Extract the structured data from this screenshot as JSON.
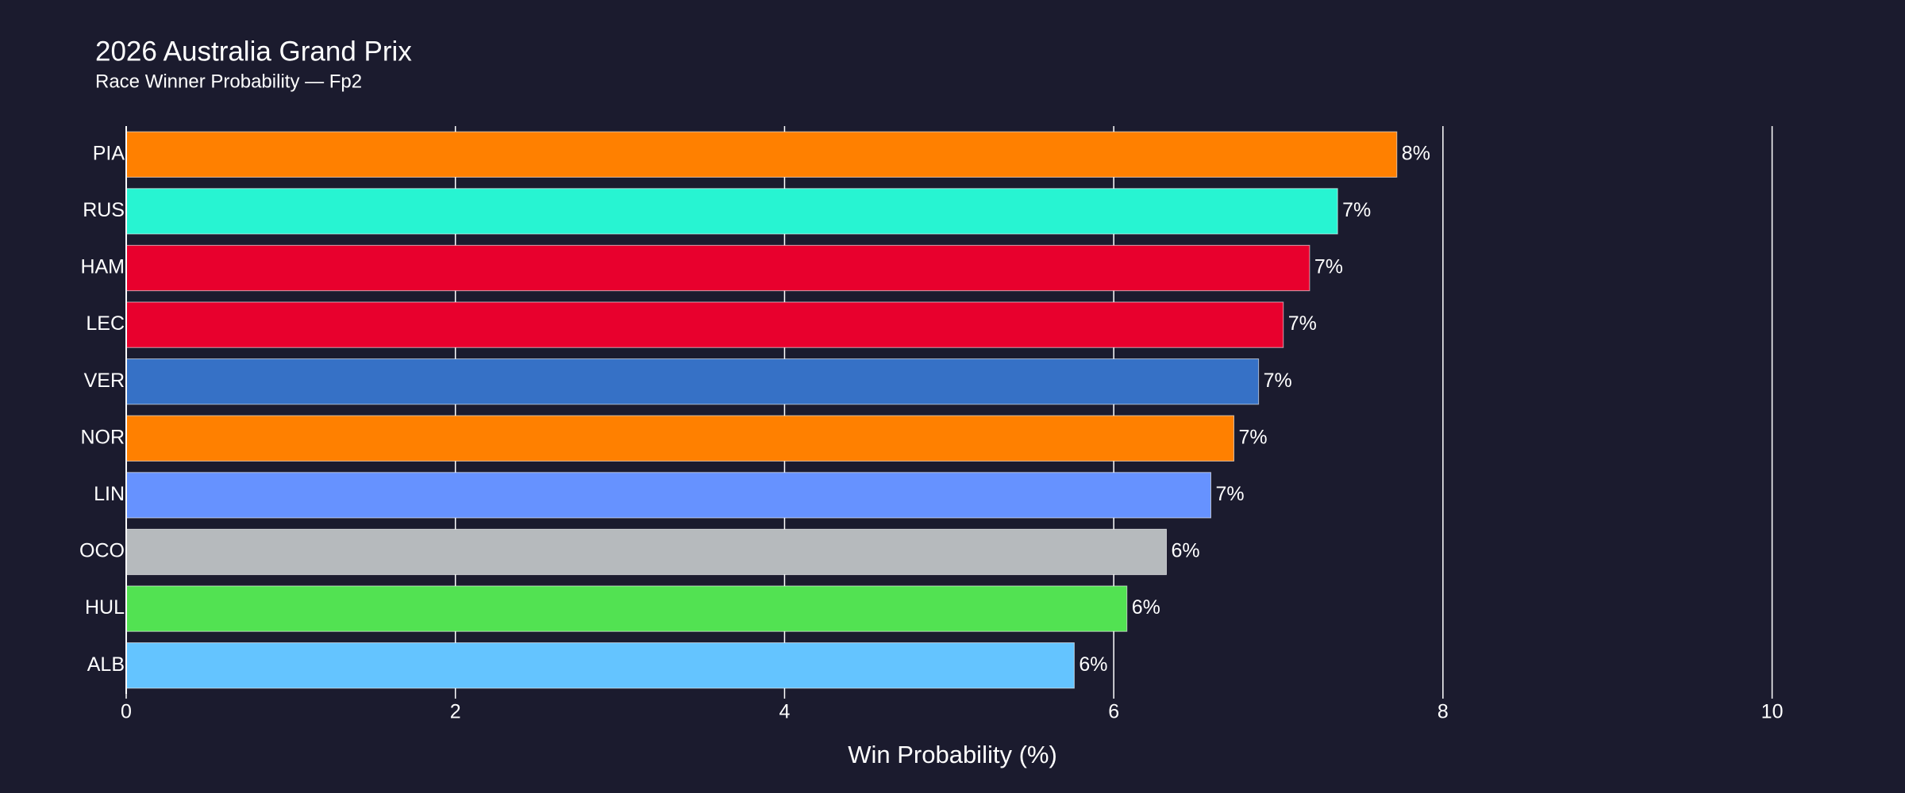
{
  "chart_data": {
    "type": "barh",
    "title": "2026 Australia Grand Prix",
    "subtitle": "Race Winner Probability — Fp2",
    "x_label": "Win Probability (%)",
    "categories": [
      "PIA",
      "RUS",
      "HAM",
      "LEC",
      "VER",
      "NOR",
      "LIN",
      "OCO",
      "HUL",
      "ALB"
    ],
    "values": [
      7.72,
      7.36,
      7.19,
      7.03,
      6.88,
      6.73,
      6.59,
      6.32,
      6.08,
      5.76
    ],
    "value_labels": [
      "8%",
      "7%",
      "7%",
      "7%",
      "7%",
      "7%",
      "7%",
      "6%",
      "6%",
      "6%"
    ],
    "colors": [
      "#ff8000",
      "#27f4d2",
      "#e8002d",
      "#e8002d",
      "#3671c6",
      "#ff8000",
      "#6692ff",
      "#b6babd",
      "#52e252",
      "#64c4ff"
    ],
    "xlim": [
      0,
      10.6
    ],
    "xticks": [
      0,
      2,
      4,
      6,
      8,
      10
    ],
    "grid": true
  }
}
